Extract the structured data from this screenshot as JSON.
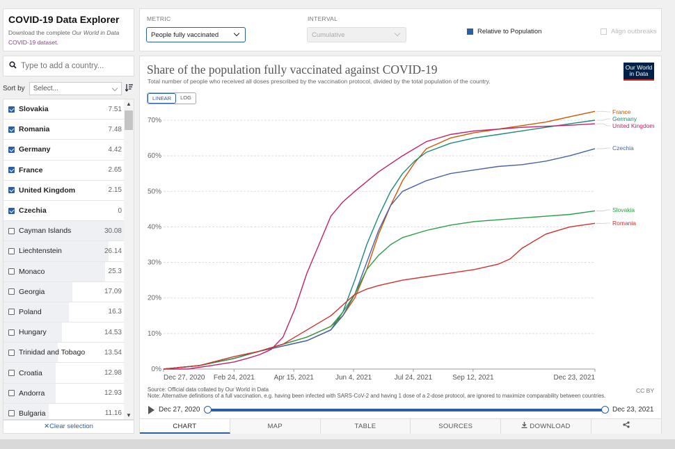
{
  "sidebar": {
    "title": "COVID-19 Data Explorer",
    "desc_1": "Download the complete ",
    "desc_2": "Our World in Data",
    "desc_3": "COVID-19 dataset.",
    "search_placeholder": "Type to add a country...",
    "sort_label": "Sort by",
    "sort_select": "Select...",
    "clear_label": "Clear selection",
    "countries": [
      {
        "name": "Slovakia",
        "value": "7.51",
        "selected": true
      },
      {
        "name": "Romania",
        "value": "7.48",
        "selected": true
      },
      {
        "name": "Germany",
        "value": "4.42",
        "selected": true
      },
      {
        "name": "France",
        "value": "2.65",
        "selected": true
      },
      {
        "name": "United Kingdom",
        "value": "2.15",
        "selected": true
      },
      {
        "name": "Czechia",
        "value": "0",
        "selected": true
      },
      {
        "name": "Cayman Islands",
        "value": "30.08",
        "selected": false
      },
      {
        "name": "Liechtenstein",
        "value": "26.14",
        "selected": false
      },
      {
        "name": "Monaco",
        "value": "25.3",
        "selected": false
      },
      {
        "name": "Georgia",
        "value": "17.09",
        "selected": false
      },
      {
        "name": "Poland",
        "value": "16.3",
        "selected": false
      },
      {
        "name": "Hungary",
        "value": "14.53",
        "selected": false
      },
      {
        "name": "Trinidad and Tobago",
        "value": "13.54",
        "selected": false
      },
      {
        "name": "Croatia",
        "value": "12.98",
        "selected": false
      },
      {
        "name": "Andorra",
        "value": "12.93",
        "selected": false
      },
      {
        "name": "Bulgaria",
        "value": "11.16",
        "selected": false
      }
    ]
  },
  "controls": {
    "metric_label": "METRIC",
    "metric_value": "People fully vaccinated",
    "interval_label": "INTERVAL",
    "interval_value": "Cumulative",
    "relative_label": "Relative to Population",
    "align_label": "Align outbreaks"
  },
  "chart": {
    "logo": "Our World in Data",
    "linear_label": "LINEAR",
    "log_label": "LOG",
    "source": "Source: Official data collated by Our World in Data",
    "note": "Note: Alternative definitions of a full vaccination, e.g. having been infected with SARS-CoV-2 and having 1 dose of a 2-dose protocol, are ignored to maximize comparability between countries.",
    "license": "CC BY",
    "timeline_start": "Dec 27, 2020",
    "timeline_end": "Dec 23, 2021"
  },
  "tabs": [
    "CHART",
    "MAP",
    "TABLE",
    "SOURCES",
    "DOWNLOAD"
  ],
  "colors": {
    "accent": "#2a5ea8"
  },
  "chart_data": {
    "type": "line",
    "title": "Share of the population fully vaccinated against COVID-19",
    "subtitle": "Total number of people who received all doses prescribed by the vaccination protocol, divided by the total population of the country.",
    "x_ticks": [
      "Dec 27, 2020",
      "Feb 24, 2021",
      "Apr 15, 2021",
      "Jun 4, 2021",
      "Jul 24, 2021",
      "Sep 12, 2021",
      "Dec 23, 2021"
    ],
    "x_tick_days": [
      0,
      59,
      109,
      159,
      209,
      259,
      361
    ],
    "y_ticks": [
      "0%",
      "10%",
      "20%",
      "30%",
      "40%",
      "50%",
      "60%",
      "70%"
    ],
    "ylim": [
      0,
      70
    ],
    "series": [
      {
        "name": "France",
        "color": "#d35400",
        "x": [
          0,
          30,
          59,
          80,
          100,
          120,
          140,
          150,
          160,
          170,
          180,
          190,
          200,
          210,
          220,
          240,
          260,
          280,
          300,
          320,
          340,
          361
        ],
        "y": [
          0,
          1,
          3,
          5,
          7,
          9,
          12,
          15,
          20,
          28,
          38,
          46,
          53,
          58,
          62,
          65,
          66.5,
          67.5,
          68.5,
          69.5,
          71,
          72.5
        ]
      },
      {
        "name": "Germany",
        "color": "#1a8a7a",
        "x": [
          0,
          30,
          59,
          80,
          100,
          120,
          140,
          150,
          160,
          170,
          180,
          190,
          200,
          210,
          220,
          240,
          260,
          280,
          300,
          320,
          340,
          361
        ],
        "y": [
          0,
          1,
          3,
          5,
          6.5,
          8,
          11,
          16,
          25,
          35,
          43,
          50,
          55,
          58.5,
          61,
          63.5,
          65,
          66,
          67,
          68,
          69,
          70
        ]
      },
      {
        "name": "United Kingdom",
        "color": "#c41f6b",
        "x": [
          0,
          20,
          40,
          59,
          70,
          80,
          90,
          100,
          110,
          120,
          130,
          140,
          150,
          160,
          180,
          200,
          220,
          240,
          260,
          280,
          300,
          320,
          340,
          361
        ],
        "y": [
          0,
          0,
          1,
          2,
          3,
          4,
          5.5,
          9,
          17,
          27,
          35,
          43,
          47,
          50,
          55.5,
          60,
          64,
          66,
          67,
          67.5,
          68,
          68.3,
          68.6,
          69
        ]
      },
      {
        "name": "Czechia",
        "color": "#4a61a8",
        "x": [
          0,
          30,
          59,
          80,
          100,
          120,
          140,
          150,
          160,
          170,
          180,
          190,
          200,
          220,
          240,
          260,
          280,
          300,
          320,
          340,
          361
        ],
        "y": [
          0,
          1,
          3,
          5,
          6.5,
          8,
          11,
          15,
          21,
          30,
          39,
          46,
          50,
          53,
          55,
          56,
          57,
          57.5,
          58.5,
          60,
          62
        ]
      },
      {
        "name": "Slovakia",
        "color": "#2a9d48",
        "x": [
          0,
          30,
          59,
          80,
          100,
          120,
          140,
          150,
          160,
          170,
          180,
          190,
          200,
          220,
          240,
          260,
          280,
          300,
          320,
          340,
          361
        ],
        "y": [
          0,
          1,
          3,
          5,
          7,
          9,
          12,
          16,
          21,
          28,
          32,
          35,
          37,
          39,
          40.5,
          41.5,
          42,
          42.5,
          43,
          43.5,
          44.5
        ]
      },
      {
        "name": "Romania",
        "color": "#d0312d",
        "x": [
          0,
          30,
          59,
          80,
          100,
          120,
          140,
          150,
          160,
          170,
          180,
          200,
          220,
          240,
          260,
          280,
          290,
          300,
          320,
          340,
          361
        ],
        "y": [
          0,
          1,
          3.5,
          5,
          7,
          11,
          15,
          18,
          21,
          22.5,
          23.5,
          25,
          26,
          27,
          28,
          29.5,
          31,
          34,
          38,
          40,
          41
        ]
      }
    ]
  }
}
